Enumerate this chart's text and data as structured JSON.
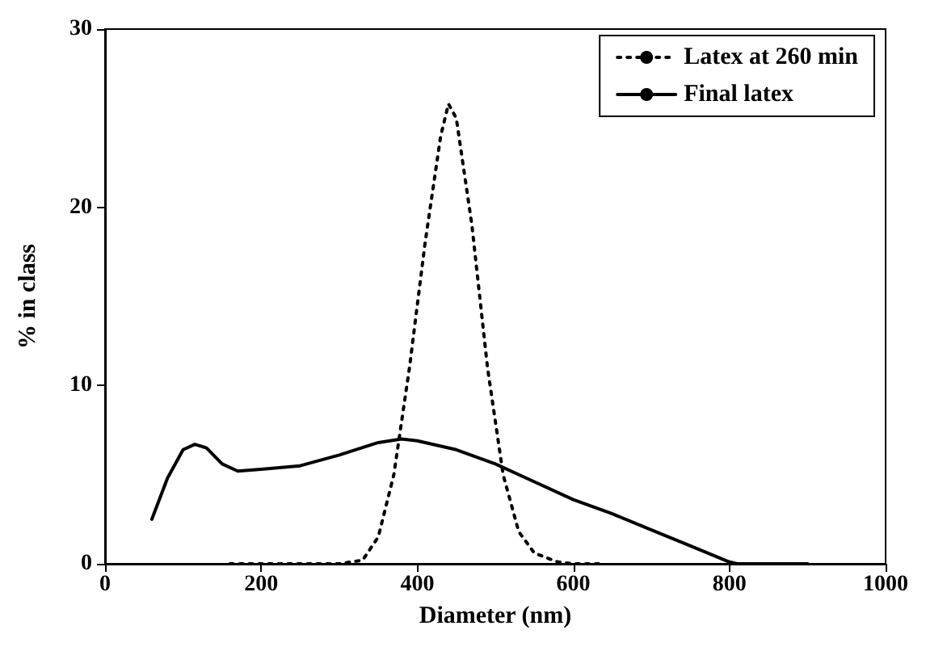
{
  "chart_data": {
    "type": "line",
    "xlabel": "Diameter (nm)",
    "ylabel": "% in class",
    "xlim": [
      0,
      1000
    ],
    "xticks": [
      0,
      200,
      400,
      600,
      800,
      1000
    ],
    "ylim": [
      0,
      30
    ],
    "yticks": [
      0,
      10,
      20,
      30
    ],
    "grid": false,
    "legend": "top right",
    "marker": "none",
    "series": [
      {
        "name": "Latex at 260 min",
        "color": "#000000",
        "line_style": "dotted",
        "x": [
          160,
          250,
          300,
          330,
          350,
          370,
          390,
          410,
          430,
          440,
          450,
          470,
          490,
          510,
          530,
          550,
          580,
          600,
          640
        ],
        "values": [
          0,
          0,
          0,
          0.2,
          1.5,
          5,
          11,
          18,
          24,
          25.8,
          25,
          19,
          11,
          5,
          1.8,
          0.6,
          0.1,
          0,
          0
        ]
      },
      {
        "name": "Final latex",
        "color": "#000000",
        "line_style": "solid",
        "x": [
          60,
          80,
          100,
          115,
          130,
          150,
          170,
          200,
          250,
          300,
          350,
          380,
          400,
          450,
          500,
          550,
          600,
          650,
          700,
          750,
          800,
          810,
          900
        ],
        "values": [
          2.5,
          4.8,
          6.4,
          6.7,
          6.5,
          5.6,
          5.2,
          5.3,
          5.5,
          6.1,
          6.8,
          7,
          6.9,
          6.4,
          5.6,
          4.6,
          3.6,
          2.8,
          1.9,
          1.0,
          0.1,
          0,
          0
        ]
      }
    ]
  }
}
